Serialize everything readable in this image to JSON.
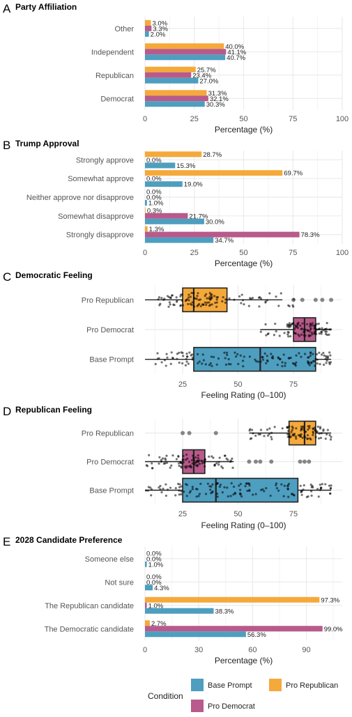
{
  "colors": {
    "base": "#4e9ebf",
    "pro_republican": "#f5a93b",
    "pro_democrat": "#b85a8b",
    "grid": "#ebebeb"
  },
  "chart_data": [
    {
      "id": "A",
      "letter": "A",
      "type": "bar",
      "orientation": "horizontal",
      "title": "Party Affiliation",
      "xlabel": "Percentage (%)",
      "xlim": [
        0,
        100
      ],
      "xticks": [
        0,
        25,
        50,
        75,
        100
      ],
      "categories": [
        "Other",
        "Independent",
        "Republican",
        "Democrat"
      ],
      "series": [
        {
          "name": "Pro Republican",
          "color_key": "pro_republican",
          "values": [
            3.0,
            40.0,
            25.7,
            31.3
          ],
          "labels": [
            "3.0%",
            "40.0%",
            "25.7%",
            "31.3%"
          ]
        },
        {
          "name": "Pro Democrat",
          "color_key": "pro_democrat",
          "values": [
            3.3,
            41.1,
            23.4,
            32.1
          ],
          "labels": [
            "3.3%",
            "41.1%",
            "23.4%",
            "32.1%"
          ]
        },
        {
          "name": "Base Prompt",
          "color_key": "base",
          "values": [
            2.0,
            40.7,
            27.0,
            30.3
          ],
          "labels": [
            "2.0%",
            "40.7%",
            "27.0%",
            "30.3%"
          ]
        }
      ]
    },
    {
      "id": "B",
      "letter": "B",
      "type": "bar",
      "orientation": "horizontal",
      "title": "Trump Approval",
      "xlabel": "Percentage (%)",
      "xlim": [
        0,
        100
      ],
      "xticks": [
        0,
        25,
        50,
        75,
        100
      ],
      "categories": [
        "Strongly approve",
        "Somewhat approve",
        "Neither approve nor disapprove",
        "Somewhat disapprove",
        "Strongly disapprove"
      ],
      "series": [
        {
          "name": "Pro Republican",
          "color_key": "pro_republican",
          "values": [
            28.7,
            69.7,
            0.0,
            0.3,
            1.3
          ],
          "labels": [
            "28.7%",
            "69.7%",
            "0.0%",
            "0.3%",
            "1.3%"
          ]
        },
        {
          "name": "Pro Democrat",
          "color_key": "pro_democrat",
          "values": [
            0.0,
            0.0,
            0.0,
            21.7,
            78.3
          ],
          "labels": [
            "0.0%",
            "0.0%",
            "0.0%",
            "21.7%",
            "78.3%"
          ]
        },
        {
          "name": "Base Prompt",
          "color_key": "base",
          "values": [
            15.3,
            19.0,
            1.0,
            30.0,
            34.7
          ],
          "labels": [
            "15.3%",
            "19.0%",
            "1.0%",
            "30.0%",
            "34.7%"
          ]
        }
      ]
    },
    {
      "id": "C",
      "letter": "C",
      "type": "box",
      "orientation": "horizontal",
      "title": "Democratic Feeling",
      "xlabel": "Feeling Rating (0–100)",
      "xlim": [
        8,
        97
      ],
      "xticks": [
        25,
        50,
        75
      ],
      "categories": [
        "Pro Republican",
        "Pro Democrat",
        "Base Prompt"
      ],
      "boxes": [
        {
          "name": "Pro Republican",
          "color_key": "pro_republican",
          "whisker_low": 8,
          "q1": 25,
          "median": 30,
          "q3": 45,
          "whisker_high": 70,
          "outliers": [
            75,
            79,
            85,
            88,
            92
          ]
        },
        {
          "name": "Pro Democrat",
          "color_key": "pro_democrat",
          "whisker_low": 60,
          "q1": 75,
          "median": 80,
          "q3": 85,
          "whisker_high": 92,
          "outliers": []
        },
        {
          "name": "Base Prompt",
          "color_key": "base",
          "whisker_low": 8,
          "q1": 30,
          "median": 60,
          "q3": 85,
          "whisker_high": 92,
          "outliers": []
        }
      ],
      "points": [
        {
          "category": "Pro Republican",
          "ranges": [
            [
              13,
              22,
              18
            ],
            [
              22,
              45,
              70
            ],
            [
              45,
              70,
              22
            ],
            [
              72,
              76,
              5
            ]
          ]
        },
        {
          "category": "Pro Democrat",
          "ranges": [
            [
              60,
              72,
              10
            ],
            [
              72,
              88,
              80
            ],
            [
              88,
              92,
              12
            ]
          ]
        },
        {
          "category": "Base Prompt",
          "ranges": [
            [
              12,
              18,
              8
            ],
            [
              18,
              30,
              25
            ],
            [
              30,
              55,
              30
            ],
            [
              55,
              85,
              55
            ],
            [
              85,
              92,
              22
            ]
          ]
        }
      ]
    },
    {
      "id": "D",
      "letter": "D",
      "type": "box",
      "orientation": "horizontal",
      "title": "Republican Feeling",
      "xlabel": "Feeling Rating (0–100)",
      "xlim": [
        8,
        97
      ],
      "xticks": [
        25,
        50,
        75
      ],
      "categories": [
        "Pro Republican",
        "Pro Democrat",
        "Base Prompt"
      ],
      "boxes": [
        {
          "name": "Pro Republican",
          "color_key": "pro_republican",
          "whisker_low": 55,
          "q1": 73,
          "median": 80,
          "q3": 85,
          "whisker_high": 92,
          "outliers": [
            25,
            28,
            40
          ]
        },
        {
          "name": "Pro Democrat",
          "color_key": "pro_democrat",
          "whisker_low": 8,
          "q1": 25,
          "median": 30,
          "q3": 35,
          "whisker_high": 48,
          "outliers": [
            55,
            58,
            60,
            65,
            78,
            80,
            82
          ]
        },
        {
          "name": "Base Prompt",
          "color_key": "base",
          "whisker_low": 8,
          "q1": 25,
          "median": 40,
          "q3": 77,
          "whisker_high": 92,
          "outliers": []
        }
      ],
      "points": [
        {
          "category": "Pro Republican",
          "ranges": [
            [
              55,
              72,
              20
            ],
            [
              72,
              86,
              60
            ],
            [
              86,
              92,
              15
            ]
          ]
        },
        {
          "category": "Pro Democrat",
          "ranges": [
            [
              8,
              24,
              25
            ],
            [
              24,
              36,
              50
            ],
            [
              36,
              48,
              20
            ]
          ]
        },
        {
          "category": "Base Prompt",
          "ranges": [
            [
              8,
              25,
              25
            ],
            [
              25,
              50,
              40
            ],
            [
              50,
              77,
              40
            ],
            [
              77,
              92,
              30
            ]
          ]
        }
      ]
    },
    {
      "id": "E",
      "letter": "E",
      "type": "bar",
      "orientation": "horizontal",
      "title": "2028 Candidate Preference",
      "xlabel": "Percentage (%)",
      "xlim": [
        0,
        110
      ],
      "xticks": [
        0,
        30,
        60,
        90
      ],
      "categories": [
        "Someone else",
        "Not sure",
        "The Republican candidate",
        "The Democratic candidate"
      ],
      "series": [
        {
          "name": "Pro Republican",
          "color_key": "pro_republican",
          "values": [
            0.0,
            0.0,
            97.3,
            2.7
          ],
          "labels": [
            "0.0%",
            "0.0%",
            "97.3%",
            "2.7%"
          ]
        },
        {
          "name": "Pro Democrat",
          "color_key": "pro_democrat",
          "values": [
            0.0,
            0.0,
            1.0,
            99.0
          ],
          "labels": [
            "0.0%",
            "0.0%",
            "1.0%",
            "99.0%"
          ]
        },
        {
          "name": "Base Prompt",
          "color_key": "base",
          "values": [
            1.0,
            4.3,
            38.3,
            56.3
          ],
          "labels": [
            "1.0%",
            "4.3%",
            "38.3%",
            "56.3%"
          ]
        }
      ]
    }
  ],
  "legend": {
    "title": "Condition",
    "items": [
      {
        "label": "Base Prompt",
        "color_key": "base"
      },
      {
        "label": "Pro Republican",
        "color_key": "pro_republican"
      },
      {
        "label": "Pro Democrat",
        "color_key": "pro_democrat"
      }
    ]
  }
}
